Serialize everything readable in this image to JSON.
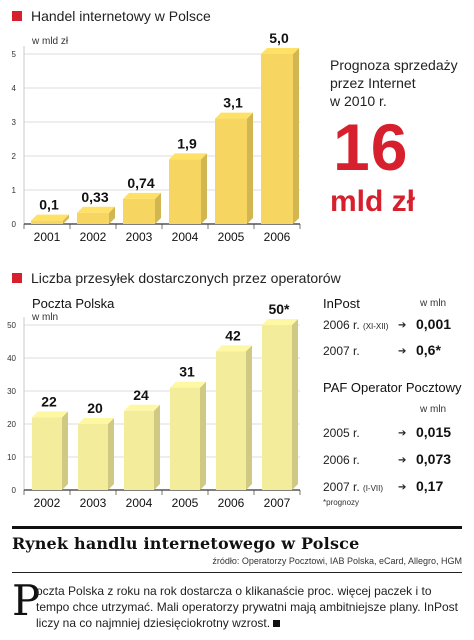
{
  "chart_data": [
    {
      "type": "bar",
      "title": "Handel internetowy w Polsce",
      "ylabel": "w mld zł",
      "categories": [
        "2001",
        "2002",
        "2003",
        "2004",
        "2005",
        "2006"
      ],
      "values": [
        0.1,
        0.33,
        0.74,
        1.9,
        3.1,
        5.0
      ],
      "value_labels": [
        "0,1",
        "0,33",
        "0,74",
        "1,9",
        "3,1",
        "5,0"
      ],
      "y_ticks": [
        "0",
        "1",
        "2",
        "3",
        "4",
        "5"
      ],
      "ylim": [
        0,
        5
      ],
      "grid": true,
      "bar_color": "#f6d661"
    },
    {
      "type": "bar",
      "title": "Liczba przesyłek dostarczonych przez operatorów",
      "subtitle": "Poczta Polska",
      "ylabel": "w mln",
      "categories": [
        "2002",
        "2003",
        "2004",
        "2005",
        "2006",
        "2007"
      ],
      "values": [
        22,
        20,
        24,
        31,
        42,
        50
      ],
      "value_labels": [
        "22",
        "20",
        "24",
        "31",
        "42",
        "50*"
      ],
      "y_ticks": [
        "0",
        "10",
        "20",
        "30",
        "40",
        "50"
      ],
      "ylim": [
        0,
        50
      ],
      "grid": true,
      "bar_color": "#f3ec9a"
    }
  ],
  "colors": {
    "accent_red": "#d7202e",
    "bar_gold": "#f6d661",
    "bar_pale": "#f3ec9a"
  },
  "forecast": {
    "line1": "Prognoza sprzedaży",
    "line2": "przez Internet",
    "line3": "w 2010 r.",
    "value": "16",
    "unit": "mld zł"
  },
  "inpost": {
    "name": "InPost",
    "unit": "w mln",
    "rows": [
      {
        "label": "2006 r.",
        "extra": "(XI-XII)",
        "value": "0,001"
      },
      {
        "label": "2007 r.",
        "extra": "",
        "value": "0,6*"
      }
    ]
  },
  "paf": {
    "name": "PAF Operator Pocztowy",
    "unit": "w mln",
    "rows": [
      {
        "label": "2005 r.",
        "extra": "",
        "value": "0,015"
      },
      {
        "label": "2006 r.",
        "extra": "",
        "value": "0,073"
      },
      {
        "label": "2007 r.",
        "extra": "(I-VII)",
        "value": "0,17"
      }
    ],
    "note": "*prognozy"
  },
  "article": {
    "headline": "Rynek handlu internetowego w Polsce",
    "source": "źródło: Operatorzy Pocztowi, IAB Polska, eCard, Allegro, HGM",
    "dropcap": "P",
    "text": "oczta Polska z roku na rok  dostarcza o klikanaście proc. więcej paczek i to tempo chce utrzymać. Mali operatorzy prywatni mają ambitniejsze plany. InPost liczy na co najmniej dziesięciokrotny wzrost."
  }
}
